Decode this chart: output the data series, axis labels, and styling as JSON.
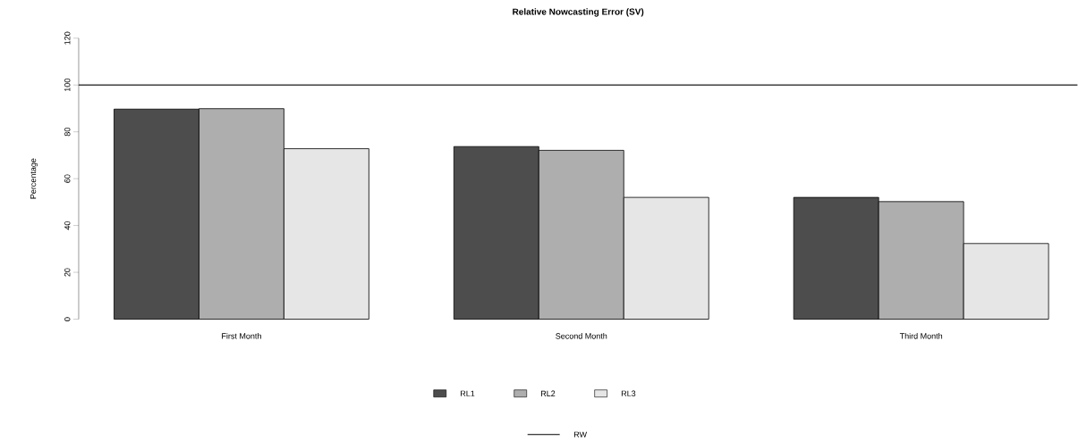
{
  "chart_data": {
    "type": "bar",
    "title": "Relative Nowcasting Error (SV)",
    "ylabel": "Percentage",
    "categories": [
      "First Month",
      "Second Month",
      "Third Month"
    ],
    "series": [
      {
        "name": "RL1",
        "color": "#4d4d4d",
        "values": [
          89.7,
          73.7,
          52.0
        ]
      },
      {
        "name": "RL2",
        "color": "#aeaeae",
        "values": [
          89.9,
          72.1,
          50.2
        ]
      },
      {
        "name": "RL3",
        "color": "#e6e6e6",
        "values": [
          72.8,
          52.0,
          32.3
        ]
      }
    ],
    "ylim": [
      0,
      120
    ],
    "yticks": [
      0,
      20,
      40,
      60,
      80,
      100,
      120
    ],
    "ref_lines": [
      {
        "axis": "y",
        "value": 100,
        "label": "RW",
        "color": "#000000",
        "line_style": "solid"
      }
    ],
    "legend": "bottom",
    "grid": false
  }
}
